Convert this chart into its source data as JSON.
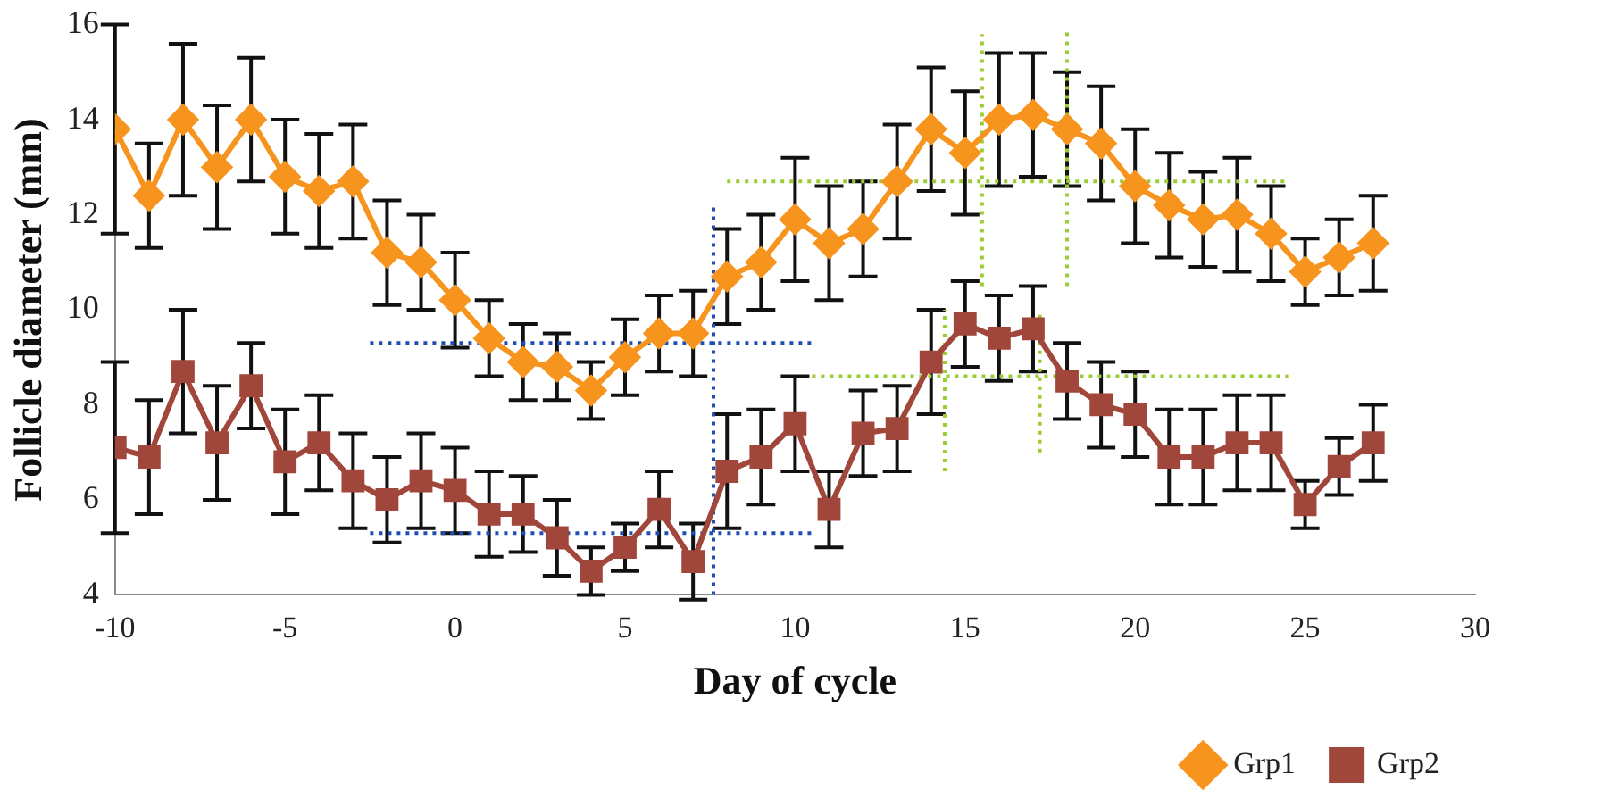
{
  "chart_data": {
    "type": "line",
    "xlabel": "Day of cycle",
    "ylabel": "Follicle diameter (mm)",
    "x": [
      -10,
      -9,
      -8,
      -7,
      -6,
      -5,
      -4,
      -3,
      -2,
      -1,
      0,
      1,
      2,
      3,
      4,
      5,
      6,
      7,
      8,
      9,
      10,
      11,
      12,
      13,
      14,
      15,
      16,
      17,
      18,
      19,
      20,
      21,
      22,
      23,
      24,
      25,
      26,
      27
    ],
    "xlim": [
      -10,
      30
    ],
    "xticks": [
      -10,
      -5,
      0,
      5,
      10,
      15,
      20,
      25,
      30
    ],
    "ylim": [
      4,
      16
    ],
    "yticks": [
      4,
      6,
      8,
      10,
      12,
      14,
      16
    ],
    "grid": false,
    "legend": "bottom right",
    "series": [
      {
        "name": "Grp1",
        "color": "#f7941d",
        "marker": "diamond",
        "values": [
          13.8,
          12.4,
          14.0,
          13.0,
          14.0,
          12.8,
          12.5,
          12.7,
          11.2,
          11.0,
          10.2,
          9.4,
          8.9,
          8.8,
          8.3,
          9.0,
          9.5,
          9.5,
          10.7,
          11.0,
          11.9,
          11.4,
          11.7,
          12.7,
          13.8,
          13.3,
          14.0,
          14.1,
          13.8,
          13.5,
          12.6,
          12.2,
          11.9,
          12.0,
          11.6,
          10.8,
          11.1,
          11.4
        ],
        "errors": [
          2.2,
          1.1,
          1.6,
          1.3,
          1.3,
          1.2,
          1.2,
          1.2,
          1.1,
          1.0,
          1.0,
          0.8,
          0.8,
          0.7,
          0.6,
          0.8,
          0.8,
          0.9,
          1.0,
          1.0,
          1.3,
          1.2,
          1.0,
          1.2,
          1.3,
          1.3,
          1.4,
          1.3,
          1.2,
          1.2,
          1.2,
          1.1,
          1.0,
          1.2,
          1.0,
          0.7,
          0.8,
          1.0
        ]
      },
      {
        "name": "Grp2",
        "color": "#a0463a",
        "marker": "square",
        "values": [
          7.1,
          6.9,
          8.7,
          7.2,
          8.4,
          6.8,
          7.2,
          6.4,
          6.0,
          6.4,
          6.2,
          5.7,
          5.7,
          5.2,
          4.5,
          5.0,
          5.8,
          4.7,
          6.6,
          6.9,
          7.6,
          5.8,
          7.4,
          7.5,
          8.9,
          9.7,
          9.4,
          9.6,
          8.5,
          8.0,
          7.8,
          6.9,
          6.9,
          7.2,
          7.2,
          5.9,
          6.7,
          7.2
        ],
        "errors": [
          1.8,
          1.2,
          1.3,
          1.2,
          0.9,
          1.1,
          1.0,
          1.0,
          0.9,
          1.0,
          0.9,
          0.9,
          0.8,
          0.8,
          0.5,
          0.5,
          0.8,
          0.8,
          1.2,
          1.0,
          1.0,
          0.8,
          0.9,
          0.9,
          1.1,
          0.9,
          0.9,
          0.9,
          0.8,
          0.9,
          0.9,
          1.0,
          1.0,
          1.0,
          1.0,
          0.5,
          0.6,
          0.8
        ]
      },
      {
        "color": "#1f4fb5",
        "marker": "none",
        "line_style": "dotted",
        "x": [
          -2.5,
          10.5
        ],
        "values": [
          9.3,
          9.3
        ]
      },
      {
        "color": "#1f4fb5",
        "marker": "none",
        "line_style": "dotted",
        "x": [
          -2.5,
          10.5
        ],
        "values": [
          5.3,
          5.3
        ]
      },
      {
        "color": "#1f4fb5",
        "marker": "none",
        "line_style": "dotted",
        "x": [
          7.6,
          7.6
        ],
        "values": [
          4.0,
          12.2
        ]
      },
      {
        "color": "#9acd32",
        "marker": "none",
        "line_style": "dotted",
        "x": [
          8,
          24.5
        ],
        "values": [
          12.7,
          12.7
        ]
      },
      {
        "color": "#9acd32",
        "marker": "none",
        "line_style": "dotted",
        "x": [
          10.5,
          24.5
        ],
        "values": [
          8.6,
          8.6
        ]
      },
      {
        "color": "#9acd32",
        "marker": "none",
        "line_style": "dotted",
        "x": [
          15.5,
          15.5
        ],
        "values": [
          10.5,
          15.8
        ]
      },
      {
        "color": "#9acd32",
        "marker": "none",
        "line_style": "dotted",
        "x": [
          18,
          18
        ],
        "values": [
          10.5,
          15.9
        ]
      },
      {
        "color": "#9acd32",
        "marker": "none",
        "line_style": "dotted",
        "x": [
          14.4,
          14.4
        ],
        "values": [
          6.6,
          10.0
        ]
      },
      {
        "color": "#9acd32",
        "marker": "none",
        "line_style": "dotted",
        "x": [
          17.2,
          17.2
        ],
        "values": [
          7.0,
          10.0
        ]
      }
    ]
  }
}
